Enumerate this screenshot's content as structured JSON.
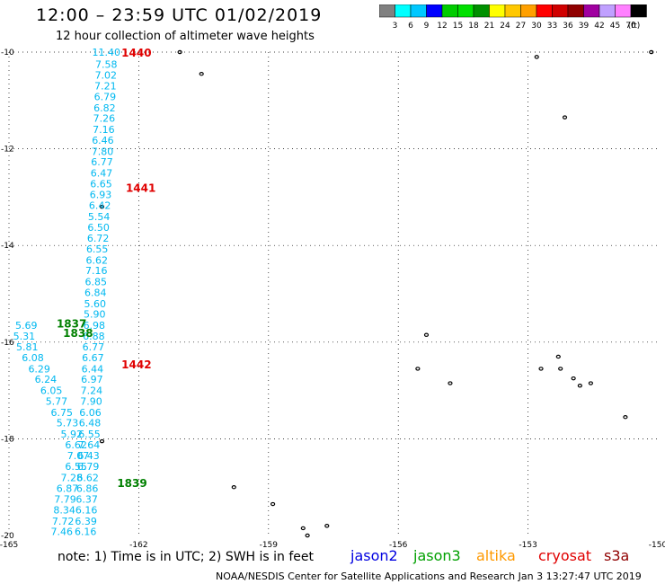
{
  "header": {
    "title": "12:00 – 23:59 UTC 01/02/2019",
    "subtitle": "12 hour collection of altimeter wave heights"
  },
  "colorbar": {
    "unit": "(ft)",
    "colors": [
      "#808080",
      "#00ffff",
      "#00c8ff",
      "#0000ff",
      "#00cc00",
      "#00e000",
      "#009000",
      "#ffff00",
      "#ffc800",
      "#ffa000",
      "#ff0000",
      "#d00000",
      "#900000",
      "#a000a0",
      "#c0a0ff",
      "#ff80ff",
      "#000000"
    ],
    "labels": [
      "3",
      "6",
      "9",
      "12",
      "15",
      "18",
      "21",
      "24",
      "27",
      "30",
      "33",
      "36",
      "39",
      "42",
      "45",
      "70"
    ]
  },
  "map": {
    "lon_ticks": [
      "-165",
      "-162",
      "-159",
      "-156",
      "-153",
      "-150"
    ],
    "lat_ticks": [
      "-10",
      "-12",
      "-14",
      "-16",
      "-18",
      "-20"
    ],
    "lon_range": [
      -165,
      -150
    ],
    "lat_range": [
      -20,
      -10
    ],
    "grid": "dotted",
    "pass_times": [
      {
        "label": "1440",
        "color": "#e00000",
        "lon": -162.4,
        "lat": -10.0
      },
      {
        "label": "1441",
        "color": "#e00000",
        "lon": -162.3,
        "lat": -12.8
      },
      {
        "label": "1442",
        "color": "#e00000",
        "lon": -162.4,
        "lat": -16.45
      },
      {
        "label": "1837",
        "color": "#008000",
        "lon": -163.9,
        "lat": -15.6
      },
      {
        "label": "1838",
        "color": "#008000",
        "lon": -163.75,
        "lat": -15.8
      },
      {
        "label": "1839",
        "color": "#008000",
        "lon": -162.5,
        "lat": -18.9
      }
    ],
    "tracks": [
      {
        "name": "track-a",
        "color": "#00b8f0",
        "points": [
          {
            "lon": -162.75,
            "lat": -10.0,
            "v": "11.40"
          },
          {
            "lon": -162.75,
            "lat": -10.25,
            "v": "7.58"
          },
          {
            "lon": -162.76,
            "lat": -10.47,
            "v": "7.02"
          },
          {
            "lon": -162.77,
            "lat": -10.7,
            "v": "7.21"
          },
          {
            "lon": -162.78,
            "lat": -10.92,
            "v": "6.79"
          },
          {
            "lon": -162.79,
            "lat": -11.15,
            "v": "6.82"
          },
          {
            "lon": -162.8,
            "lat": -11.37,
            "v": "7.26"
          },
          {
            "lon": -162.81,
            "lat": -11.6,
            "v": "7.16"
          },
          {
            "lon": -162.83,
            "lat": -11.82,
            "v": "6.46"
          },
          {
            "lon": -162.84,
            "lat": -12.05,
            "v": "7.80"
          },
          {
            "lon": -162.85,
            "lat": -12.27,
            "v": "6.77"
          },
          {
            "lon": -162.86,
            "lat": -12.5,
            "v": "6.47"
          },
          {
            "lon": -162.87,
            "lat": -12.72,
            "v": "6.65"
          },
          {
            "lon": -162.88,
            "lat": -12.95,
            "v": "6.93"
          },
          {
            "lon": -162.9,
            "lat": -13.17,
            "v": "6.42"
          },
          {
            "lon": -162.92,
            "lat": -13.4,
            "v": "5.54"
          },
          {
            "lon": -162.93,
            "lat": -13.62,
            "v": "6.50"
          },
          {
            "lon": -162.94,
            "lat": -13.85,
            "v": "6.72"
          },
          {
            "lon": -162.96,
            "lat": -14.07,
            "v": "6.55"
          },
          {
            "lon": -162.97,
            "lat": -14.3,
            "v": "6.62"
          },
          {
            "lon": -162.98,
            "lat": -14.52,
            "v": "7.16"
          },
          {
            "lon": -162.99,
            "lat": -14.75,
            "v": "6.85"
          },
          {
            "lon": -163.0,
            "lat": -14.97,
            "v": "6.84"
          },
          {
            "lon": -163.01,
            "lat": -15.2,
            "v": "5.60"
          },
          {
            "lon": -163.02,
            "lat": -15.42,
            "v": "5.90"
          },
          {
            "lon": -163.03,
            "lat": -15.65,
            "v": "6.98"
          },
          {
            "lon": -163.04,
            "lat": -15.87,
            "v": "6.88"
          },
          {
            "lon": -163.05,
            "lat": -16.1,
            "v": "6.77"
          },
          {
            "lon": -163.06,
            "lat": -16.32,
            "v": "6.67"
          },
          {
            "lon": -163.07,
            "lat": -16.55,
            "v": "6.44"
          },
          {
            "lon": -163.08,
            "lat": -16.77,
            "v": "6.97"
          },
          {
            "lon": -163.09,
            "lat": -17.0,
            "v": "7.24"
          },
          {
            "lon": -163.1,
            "lat": -17.22,
            "v": "7.90"
          },
          {
            "lon": -163.12,
            "lat": -17.45,
            "v": "6.06"
          },
          {
            "lon": -163.13,
            "lat": -17.67,
            "v": "6.48"
          },
          {
            "lon": -163.14,
            "lat": -17.9,
            "v": "6.55"
          },
          {
            "lon": -163.15,
            "lat": -18.12,
            "v": "7.64"
          },
          {
            "lon": -163.16,
            "lat": -18.35,
            "v": "6.43"
          },
          {
            "lon": -163.17,
            "lat": -18.57,
            "v": "6.79"
          },
          {
            "lon": -163.18,
            "lat": -18.8,
            "v": "6.62"
          },
          {
            "lon": -163.19,
            "lat": -19.02,
            "v": "6.86"
          },
          {
            "lon": -163.2,
            "lat": -19.25,
            "v": "6.37"
          },
          {
            "lon": -163.21,
            "lat": -19.47,
            "v": "6.16"
          },
          {
            "lon": -163.22,
            "lat": -19.7,
            "v": "6.39"
          },
          {
            "lon": -163.23,
            "lat": -19.92,
            "v": "6.16"
          }
        ]
      },
      {
        "name": "track-b",
        "color": "#00b8f0",
        "points": [
          {
            "lon": -164.6,
            "lat": -15.65,
            "v": "5.69"
          },
          {
            "lon": -164.65,
            "lat": -15.87,
            "v": "5.31"
          },
          {
            "lon": -164.58,
            "lat": -16.1,
            "v": "5.81"
          },
          {
            "lon": -164.45,
            "lat": -16.32,
            "v": "6.08"
          },
          {
            "lon": -164.3,
            "lat": -16.55,
            "v": "6.29"
          },
          {
            "lon": -164.15,
            "lat": -16.77,
            "v": "6.24"
          },
          {
            "lon": -164.02,
            "lat": -17.0,
            "v": "6.05"
          },
          {
            "lon": -163.9,
            "lat": -17.22,
            "v": "5.77"
          },
          {
            "lon": -163.78,
            "lat": -17.45,
            "v": "6.75"
          },
          {
            "lon": -163.65,
            "lat": -17.67,
            "v": "5.73"
          },
          {
            "lon": -163.55,
            "lat": -17.9,
            "v": "5.92"
          },
          {
            "lon": -163.45,
            "lat": -18.12,
            "v": "6.62"
          },
          {
            "lon": -163.4,
            "lat": -18.35,
            "v": "7.07"
          },
          {
            "lon": -163.45,
            "lat": -18.57,
            "v": "6.55"
          },
          {
            "lon": -163.55,
            "lat": -18.8,
            "v": "7.28"
          },
          {
            "lon": -163.65,
            "lat": -19.02,
            "v": "6.87"
          },
          {
            "lon": -163.7,
            "lat": -19.25,
            "v": "7.79"
          },
          {
            "lon": -163.72,
            "lat": -19.47,
            "v": "8.34"
          },
          {
            "lon": -163.75,
            "lat": -19.7,
            "v": "7.72"
          },
          {
            "lon": -163.78,
            "lat": -19.92,
            "v": "7.46"
          }
        ]
      }
    ],
    "islands": [
      {
        "lon": -161.05,
        "lat": -10.0
      },
      {
        "lon": -160.55,
        "lat": -10.45
      },
      {
        "lon": -152.8,
        "lat": -10.1
      },
      {
        "lon": -150.15,
        "lat": -10.0
      },
      {
        "lon": -152.15,
        "lat": -11.35
      },
      {
        "lon": -162.85,
        "lat": -13.2
      },
      {
        "lon": -155.35,
        "lat": -15.85
      },
      {
        "lon": -155.55,
        "lat": -16.55
      },
      {
        "lon": -154.8,
        "lat": -16.85
      },
      {
        "lon": -152.3,
        "lat": -16.3
      },
      {
        "lon": -152.7,
        "lat": -16.55
      },
      {
        "lon": -152.25,
        "lat": -16.55
      },
      {
        "lon": -151.95,
        "lat": -16.75
      },
      {
        "lon": -151.8,
        "lat": -16.9
      },
      {
        "lon": -151.55,
        "lat": -16.85
      },
      {
        "lon": -150.75,
        "lat": -17.55
      },
      {
        "lon": -162.85,
        "lat": -18.05
      },
      {
        "lon": -159.8,
        "lat": -19.0
      },
      {
        "lon": -158.9,
        "lat": -19.35
      },
      {
        "lon": -158.2,
        "lat": -19.85
      },
      {
        "lon": -157.65,
        "lat": -19.8
      },
      {
        "lon": -158.1,
        "lat": -20.0
      }
    ]
  },
  "footer": {
    "note": "note:  1) Time is in UTC;  2) SWH is in feet",
    "satellites": [
      {
        "name": "jason2",
        "color": "#0000e0"
      },
      {
        "name": "jason3",
        "color": "#00a000"
      },
      {
        "name": "altika",
        "color": "#ff9900"
      },
      {
        "name": "cryosat",
        "color": "#e00000"
      },
      {
        "name": "s3a",
        "color": "#900000"
      }
    ],
    "credit": "NOAA/NESDIS Center for Satellite Applications and Research    Jan  3 13:27:47 UTC 2019"
  }
}
